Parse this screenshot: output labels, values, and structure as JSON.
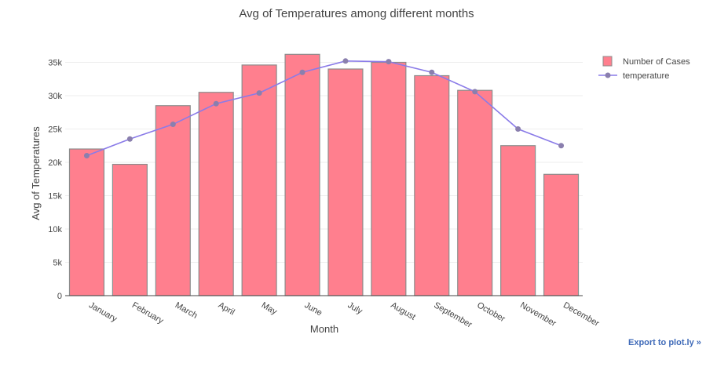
{
  "chart_data": {
    "type": "bar",
    "title": "Avg of Temperatures among different months",
    "xlabel": "Month",
    "ylabel": "Avg of Temperatures",
    "categories": [
      "January",
      "February",
      "March",
      "April",
      "May",
      "June",
      "July",
      "August",
      "September",
      "October",
      "November",
      "December"
    ],
    "ylim": [
      0,
      38000
    ],
    "yticks": [
      {
        "value": 0,
        "label": "0"
      },
      {
        "value": 5000,
        "label": "5k"
      },
      {
        "value": 10000,
        "label": "10k"
      },
      {
        "value": 15000,
        "label": "15k"
      },
      {
        "value": 20000,
        "label": "20k"
      },
      {
        "value": 25000,
        "label": "25k"
      },
      {
        "value": 30000,
        "label": "30k"
      },
      {
        "value": 35000,
        "label": "35k"
      }
    ],
    "grid": true,
    "legend_position": "top-right",
    "series": [
      {
        "name": "Number of Cases",
        "type": "bar",
        "color": "#ff7f8e",
        "edge_color": "#8c8c8c",
        "values": [
          22000,
          19700,
          28500,
          30500,
          34600,
          36200,
          34000,
          35000,
          33000,
          30800,
          22500,
          18200
        ]
      },
      {
        "name": "temperature",
        "type": "line",
        "color": "#8a7be8",
        "marker_color": "#8a7fae",
        "values": [
          21000,
          23500,
          25700,
          28800,
          30400,
          33500,
          35200,
          35100,
          33500,
          30600,
          25000,
          22500
        ]
      }
    ]
  },
  "export_link": {
    "label": "Export to plot.ly »"
  }
}
